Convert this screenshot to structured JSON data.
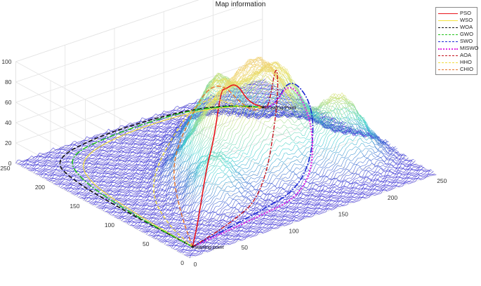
{
  "chart_data": {
    "type": "surface3d",
    "title": "Map information",
    "xlabel": "",
    "ylabel": "",
    "zlabel": "",
    "xlim": [
      0,
      250
    ],
    "ylim": [
      0,
      250
    ],
    "zlim": [
      0,
      100
    ],
    "x_ticks": [
      "0",
      "50",
      "100",
      "150",
      "200",
      "250"
    ],
    "y_ticks": [
      "0",
      "50",
      "100",
      "150",
      "200",
      "250"
    ],
    "z_ticks": [
      "0",
      "20",
      "40",
      "60",
      "80",
      "100"
    ],
    "grid": true,
    "legend_position": "top-right",
    "surface_colormap": [
      "#3a2bd4",
      "#3fd3d0",
      "#e4e36a",
      "#f0d070"
    ],
    "peaks": [
      {
        "x": 145,
        "y": 105,
        "h": 100,
        "s": 23
      },
      {
        "x": 185,
        "y": 138,
        "h": 70,
        "s": 20
      },
      {
        "x": 205,
        "y": 75,
        "h": 62,
        "s": 20
      },
      {
        "x": 140,
        "y": 162,
        "h": 55,
        "s": 18
      },
      {
        "x": 105,
        "y": 122,
        "h": 50,
        "s": 20
      },
      {
        "x": 80,
        "y": 78,
        "h": 38,
        "s": 16
      },
      {
        "x": 162,
        "y": 188,
        "h": 45,
        "s": 14
      }
    ],
    "annotations": [
      {
        "text": "Starting point",
        "x": 10,
        "y": 10,
        "z": 0
      },
      {
        "text": "Drawing Point",
        "x": 212,
        "y": 195,
        "z": 0
      }
    ],
    "series": [
      {
        "name": "PSO",
        "color": "#e8141b",
        "dash": "",
        "width": 1.6,
        "path": [
          [
            10,
            10,
            0
          ],
          [
            40,
            45,
            0
          ],
          [
            70,
            75,
            0
          ],
          [
            95,
            100,
            0
          ],
          [
            115,
            118,
            0
          ],
          [
            135,
            140,
            0
          ],
          [
            160,
            160,
            0
          ],
          [
            185,
            178,
            0
          ],
          [
            212,
            195,
            0
          ]
        ]
      },
      {
        "name": "WSO",
        "color": "#f2e23a",
        "dash": "",
        "width": 1.2,
        "path": [
          [
            10,
            10,
            0
          ],
          [
            12,
            90,
            0
          ],
          [
            18,
            170,
            0
          ],
          [
            40,
            215,
            0
          ],
          [
            90,
            232,
            0
          ],
          [
            160,
            228,
            0
          ],
          [
            200,
            215,
            0
          ],
          [
            212,
            195,
            0
          ]
        ]
      },
      {
        "name": "WOA",
        "color": "#111111",
        "dash": "6 3",
        "width": 1.6,
        "path": [
          [
            10,
            10,
            0
          ],
          [
            8,
            95,
            0
          ],
          [
            10,
            180,
            0
          ],
          [
            22,
            228,
            0
          ],
          [
            75,
            242,
            0
          ],
          [
            145,
            240,
            0
          ],
          [
            190,
            225,
            0
          ],
          [
            212,
            195,
            0
          ]
        ]
      },
      {
        "name": "GWO",
        "color": "#21c21a",
        "dash": "8 2 2 2",
        "width": 1.6,
        "path": [
          [
            10,
            10,
            0
          ],
          [
            9,
            92,
            0
          ],
          [
            14,
            175,
            0
          ],
          [
            32,
            222,
            0
          ],
          [
            85,
            236,
            0
          ],
          [
            155,
            233,
            0
          ],
          [
            198,
            218,
            0
          ],
          [
            212,
            195,
            0
          ]
        ]
      },
      {
        "name": "SWO",
        "color": "#1b27d4",
        "dash": "8 2 2 2",
        "width": 1.6,
        "path": [
          [
            10,
            10,
            0
          ],
          [
            80,
            25,
            0
          ],
          [
            150,
            45,
            0
          ],
          [
            185,
            80,
            0
          ],
          [
            195,
            130,
            0
          ],
          [
            205,
            170,
            0
          ],
          [
            212,
            195,
            0
          ]
        ]
      },
      {
        "name": "MISWO",
        "color": "#e12be3",
        "dash": "2 2",
        "width": 2.2,
        "path": [
          [
            10,
            10,
            0
          ],
          [
            75,
            20,
            0
          ],
          [
            145,
            35,
            0
          ],
          [
            178,
            72,
            0
          ],
          [
            192,
            125,
            0
          ],
          [
            203,
            168,
            0
          ],
          [
            212,
            195,
            0
          ]
        ]
      },
      {
        "name": "AOA",
        "color": "#c4121d",
        "dash": "6 2 2 2",
        "width": 1.4,
        "path": [
          [
            10,
            10,
            0
          ],
          [
            55,
            25,
            0
          ],
          [
            110,
            50,
            0
          ],
          [
            150,
            85,
            0
          ],
          [
            180,
            130,
            0
          ],
          [
            200,
            170,
            0
          ],
          [
            212,
            195,
            0
          ]
        ]
      },
      {
        "name": "HHO",
        "color": "#f0dc3c",
        "dash": "5 3",
        "width": 1.4,
        "path": [
          [
            10,
            10,
            0
          ],
          [
            20,
            60,
            0
          ],
          [
            45,
            120,
            0
          ],
          [
            90,
            170,
            0
          ],
          [
            150,
            195,
            0
          ],
          [
            195,
            200,
            0
          ],
          [
            212,
            195,
            0
          ]
        ]
      },
      {
        "name": "CHIO",
        "color": "#e6732a",
        "dash": "6 3",
        "width": 1.4,
        "path": [
          [
            10,
            10,
            0
          ],
          [
            40,
            70,
            0
          ],
          [
            70,
            125,
            0
          ],
          [
            110,
            168,
            0
          ],
          [
            160,
            192,
            0
          ],
          [
            200,
            198,
            0
          ],
          [
            212,
            195,
            0
          ]
        ]
      }
    ]
  }
}
